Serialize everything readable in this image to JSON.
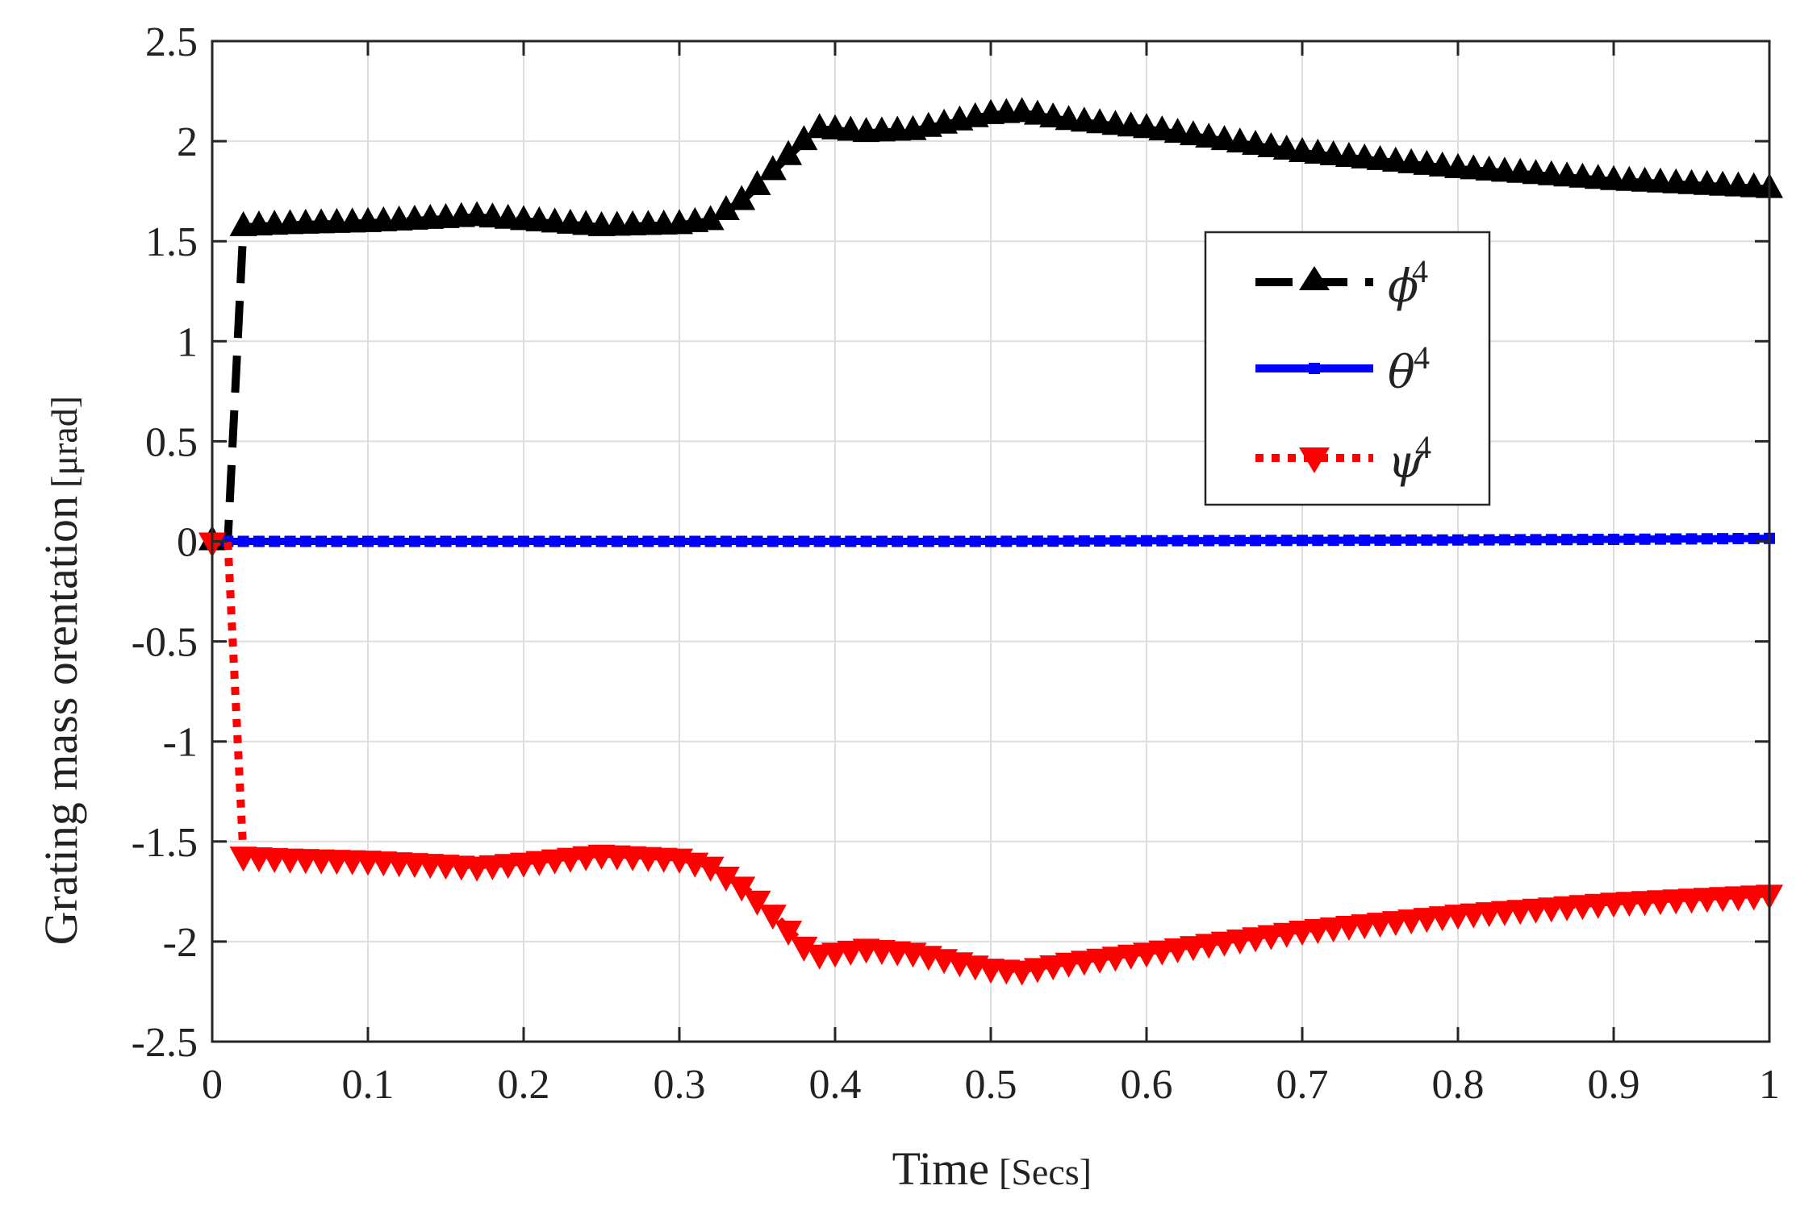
{
  "chart_data": {
    "type": "line",
    "xlabel": "Time",
    "xlabel_unit": "[Secs]",
    "ylabel": "Grating mass orentation",
    "ylabel_unit": "[μrad]",
    "xlim": [
      0,
      1
    ],
    "ylim": [
      -2.5,
      2.5
    ],
    "grid": true,
    "legend_position": "upper-right-center",
    "x_ticks": [
      0,
      0.1,
      0.2,
      0.3,
      0.4,
      0.5,
      0.6,
      0.7,
      0.8,
      0.9,
      1
    ],
    "x_tick_labels": [
      "0",
      "0.1",
      "0.2",
      "0.3",
      "0.4",
      "0.5",
      "0.6",
      "0.7",
      "0.8",
      "0.9",
      "1"
    ],
    "y_ticks": [
      -2.5,
      -2,
      -1.5,
      -1,
      -0.5,
      0,
      0.5,
      1,
      1.5,
      2,
      2.5
    ],
    "y_tick_labels": [
      "-2.5",
      "-2",
      "-1.5",
      "-1",
      "-0.5",
      "0",
      "0.5",
      "1",
      "1.5",
      "2",
      "2.5"
    ],
    "series": [
      {
        "name": "ϕ",
        "superscript": "4",
        "color": "#000000",
        "line_style": "dashed",
        "marker": "triangle-up",
        "x": [
          0,
          0.01,
          0.02,
          0.05,
          0.1,
          0.15,
          0.17,
          0.2,
          0.25,
          0.3,
          0.32,
          0.34,
          0.36,
          0.38,
          0.39,
          0.42,
          0.45,
          0.5,
          0.52,
          0.55,
          0.6,
          0.7,
          0.8,
          0.9,
          1.0
        ],
        "values": [
          0,
          0.0,
          1.57,
          1.58,
          1.59,
          1.61,
          1.62,
          1.6,
          1.57,
          1.58,
          1.6,
          1.7,
          1.85,
          2.0,
          2.06,
          2.04,
          2.05,
          2.13,
          2.14,
          2.1,
          2.06,
          1.94,
          1.86,
          1.8,
          1.76
        ]
      },
      {
        "name": "θ",
        "superscript": "4",
        "color": "#0000ff",
        "line_style": "solid",
        "marker": "square",
        "x": [
          0,
          0.01,
          0.1,
          0.2,
          0.3,
          0.4,
          0.5,
          0.6,
          0.7,
          0.8,
          0.9,
          1.0
        ],
        "values": [
          0,
          0,
          0,
          0,
          0,
          0,
          0,
          0.003,
          0.005,
          0.007,
          0.01,
          0.015
        ]
      },
      {
        "name": "ψ",
        "superscript": "4",
        "color": "#ff0000",
        "line_style": "dotted",
        "marker": "triangle-down",
        "x": [
          0,
          0.01,
          0.02,
          0.05,
          0.1,
          0.15,
          0.17,
          0.2,
          0.25,
          0.3,
          0.32,
          0.34,
          0.36,
          0.38,
          0.39,
          0.42,
          0.45,
          0.5,
          0.52,
          0.55,
          0.6,
          0.7,
          0.8,
          0.9,
          1.0
        ],
        "values": [
          0,
          0.0,
          -1.57,
          -1.58,
          -1.59,
          -1.61,
          -1.62,
          -1.6,
          -1.56,
          -1.58,
          -1.62,
          -1.72,
          -1.86,
          -2.02,
          -2.06,
          -2.03,
          -2.05,
          -2.13,
          -2.14,
          -2.1,
          -2.05,
          -1.94,
          -1.86,
          -1.8,
          -1.76
        ]
      }
    ]
  }
}
